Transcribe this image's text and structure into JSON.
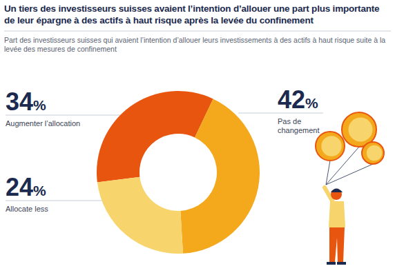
{
  "chart_data": {
    "type": "donut",
    "title": "Un tiers des investisseurs suisses avaient l’intention d’allouer une part plus importante de leur épargne à des actifs à haut risque après la levée du confinement",
    "subtitle": "Part des investisseurs suisses qui avaient l’intention d’allouer leurs investissements à des actifs à haut risque suite à la levée des mesures de confinement",
    "categories": [
      "Augmenter l’allocation",
      "Pas de changement",
      "Allocate less"
    ],
    "values": [
      34,
      42,
      24
    ],
    "value_labels": [
      "34%",
      "42%",
      "24%"
    ],
    "colors": [
      "#e8550f",
      "#f4a81c",
      "#f8d46c"
    ],
    "data_labels": true
  }
}
